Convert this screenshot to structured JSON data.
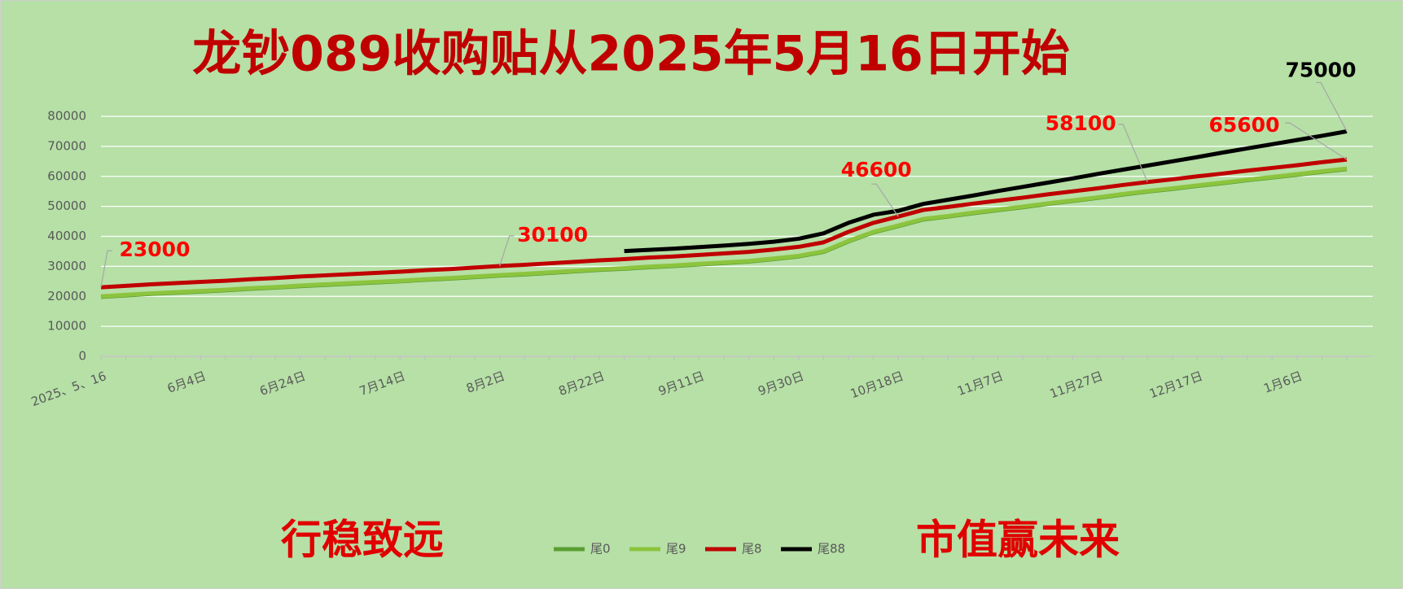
{
  "chart_data": {
    "type": "line",
    "title": "龙钞089收购贴从2025年5月16日开始",
    "slogans": [
      "行稳致远",
      "市值赢未来"
    ],
    "categories": [
      "2025、5、16",
      null,
      null,
      null,
      "6月4日",
      null,
      null,
      null,
      "6月24日",
      null,
      null,
      null,
      "7月14日",
      null,
      null,
      null,
      "8月2日",
      null,
      null,
      null,
      "8月22日",
      null,
      null,
      null,
      "9月11日",
      null,
      null,
      null,
      "9月30日",
      null,
      null,
      null,
      "10月18日",
      null,
      null,
      null,
      "11月7日",
      null,
      null,
      null,
      "11月27日",
      null,
      null,
      null,
      "12月17日",
      null,
      null,
      null,
      "1月6日",
      null,
      null
    ],
    "series": [
      {
        "name": "尾0",
        "color": "#5a9e32",
        "values": [
          19800,
          20300,
          20800,
          21200,
          21600,
          22000,
          22500,
          22900,
          23400,
          23800,
          24200,
          24600,
          25000,
          25500,
          25900,
          26400,
          26900,
          27300,
          27800,
          28300,
          28800,
          29200,
          29700,
          30100,
          30600,
          31100,
          31600,
          32400,
          33300,
          34800,
          38300,
          41300,
          43400,
          45600,
          46600,
          47700,
          48700,
          49700,
          50800,
          51800,
          52800,
          53900,
          54900,
          55800,
          56800,
          57700,
          58700,
          59600,
          60500,
          61500,
          62400
        ]
      },
      {
        "name": "尾9",
        "color": "#8cc43e",
        "values": [
          20000,
          20500,
          21000,
          21400,
          21800,
          22200,
          22700,
          23100,
          23600,
          24000,
          24400,
          24800,
          25200,
          25700,
          26100,
          26600,
          27100,
          27500,
          28000,
          28500,
          29000,
          29400,
          29900,
          30300,
          30800,
          31300,
          31800,
          32600,
          33500,
          35000,
          38500,
          41500,
          43600,
          45800,
          46800,
          47900,
          48900,
          49900,
          51000,
          52000,
          53000,
          54100,
          55100,
          56000,
          57000,
          57900,
          58900,
          59800,
          60700,
          61700,
          62600
        ]
      },
      {
        "name": "尾8",
        "color": "#c00000",
        "values": [
          23000,
          23500,
          24000,
          24400,
          24800,
          25200,
          25700,
          26100,
          26600,
          27000,
          27400,
          27800,
          28200,
          28700,
          29100,
          29600,
          30100,
          30500,
          31000,
          31500,
          32000,
          32400,
          32900,
          33300,
          33800,
          34300,
          34800,
          35600,
          36500,
          38000,
          41500,
          44500,
          46600,
          48800,
          49800,
          50900,
          51900,
          52900,
          54000,
          55000,
          56000,
          57100,
          58100,
          59000,
          60000,
          60900,
          61900,
          62800,
          63700,
          64700,
          65600
        ],
        "labeled_points": [
          0,
          16,
          32,
          42,
          50
        ]
      },
      {
        "name": "尾88",
        "color": "#000000",
        "values": [
          null,
          null,
          null,
          null,
          null,
          null,
          null,
          null,
          null,
          null,
          null,
          null,
          null,
          null,
          null,
          null,
          null,
          null,
          null,
          null,
          null,
          35100,
          35500,
          35900,
          36400,
          36900,
          37500,
          38200,
          39200,
          41000,
          44500,
          47200,
          48500,
          50800,
          52200,
          53600,
          55100,
          56500,
          57900,
          59300,
          60800,
          62200,
          63600,
          65000,
          66400,
          67900,
          69300,
          70700,
          72100,
          73500,
          75000
        ],
        "labeled_points": [
          50
        ]
      }
    ],
    "ylim": [
      0,
      80000
    ],
    "yticks": [
      0,
      10000,
      20000,
      30000,
      40000,
      50000,
      60000,
      70000,
      80000
    ],
    "grid": true
  }
}
